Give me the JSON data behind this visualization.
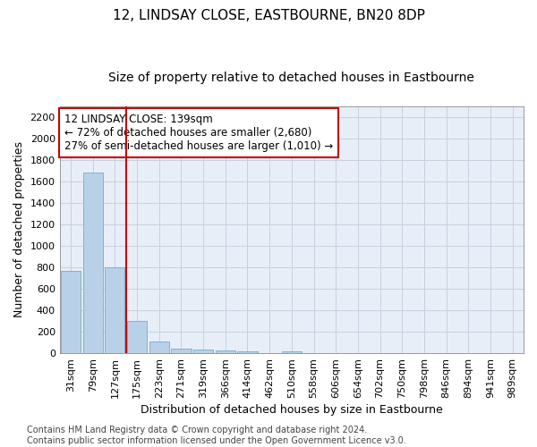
{
  "title": "12, LINDSAY CLOSE, EASTBOURNE, BN20 8DP",
  "subtitle": "Size of property relative to detached houses in Eastbourne",
  "xlabel": "Distribution of detached houses by size in Eastbourne",
  "ylabel": "Number of detached properties",
  "categories": [
    "31sqm",
    "79sqm",
    "127sqm",
    "175sqm",
    "223sqm",
    "271sqm",
    "319sqm",
    "366sqm",
    "414sqm",
    "462sqm",
    "510sqm",
    "558sqm",
    "606sqm",
    "654sqm",
    "702sqm",
    "750sqm",
    "798sqm",
    "846sqm",
    "894sqm",
    "941sqm",
    "989sqm"
  ],
  "values": [
    770,
    1680,
    800,
    300,
    110,
    45,
    30,
    25,
    20,
    0,
    20,
    0,
    0,
    0,
    0,
    0,
    0,
    0,
    0,
    0,
    0
  ],
  "bar_color": "#b8d0e8",
  "bar_edge_color": "#7aaac8",
  "background_color": "#e8eef8",
  "grid_color": "#c8d0e0",
  "vline_color": "#cc0000",
  "annotation_line1": "12 LINDSAY CLOSE: 139sqm",
  "annotation_line2": "← 72% of detached houses are smaller (2,680)",
  "annotation_line3": "27% of semi-detached houses are larger (1,010) →",
  "annotation_box_color": "#cc0000",
  "ylim": [
    0,
    2300
  ],
  "yticks": [
    0,
    200,
    400,
    600,
    800,
    1000,
    1200,
    1400,
    1600,
    1800,
    2000,
    2200
  ],
  "footer": "Contains HM Land Registry data © Crown copyright and database right 2024.\nContains public sector information licensed under the Open Government Licence v3.0.",
  "title_fontsize": 11,
  "subtitle_fontsize": 10,
  "xlabel_fontsize": 9,
  "ylabel_fontsize": 9,
  "tick_fontsize": 8,
  "annotation_fontsize": 8.5,
  "footer_fontsize": 7
}
